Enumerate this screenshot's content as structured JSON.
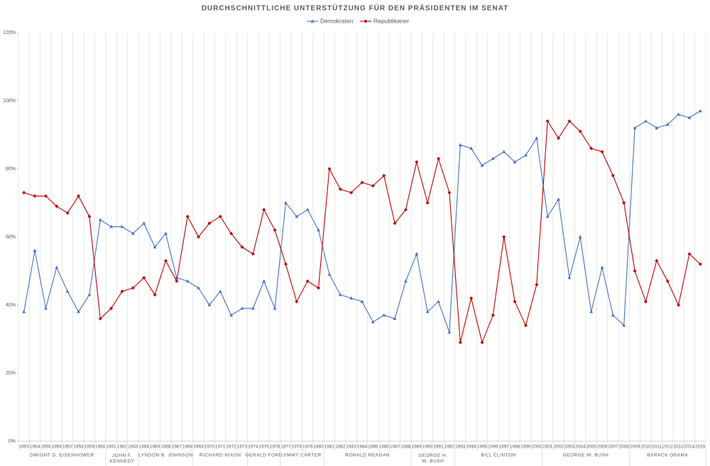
{
  "chart_data": {
    "type": "line",
    "title": "DURCHSCHNITTLICHE UNTERSTÜTZUNG FÜR DEN PRÄSIDENTEN IM SENAT",
    "categories": [
      "1953",
      "1954",
      "1955",
      "1956",
      "1957",
      "1958",
      "1959",
      "1960",
      "1961",
      "1962",
      "1963",
      "1964",
      "1965",
      "1966",
      "1967",
      "1968",
      "1969",
      "1970",
      "1971",
      "1972",
      "1973",
      "1974",
      "1975",
      "1976",
      "1977",
      "1978",
      "1979",
      "1980",
      "1981",
      "1982",
      "1983",
      "1984",
      "1985",
      "1986",
      "1987",
      "1988",
      "1989",
      "1990",
      "1991",
      "1992",
      "1993",
      "1994",
      "1995",
      "1996",
      "1997",
      "1998",
      "1999",
      "2000",
      "2001",
      "2002",
      "2003",
      "2004",
      "2005",
      "2006",
      "2007",
      "2008",
      "2009",
      "2010",
      "2011",
      "2012",
      "2013",
      "2014",
      "2015"
    ],
    "series": [
      {
        "name": "Demokraten",
        "color": "#4472c4",
        "marker": "triangle",
        "values": [
          38,
          56,
          39,
          51,
          44,
          38,
          43,
          65,
          63,
          63,
          61,
          64,
          57,
          61,
          48,
          47,
          45,
          40,
          44,
          37,
          39,
          39,
          47,
          39,
          70,
          66,
          68,
          62,
          49,
          43,
          42,
          41,
          35,
          37,
          36,
          47,
          55,
          38,
          41,
          32,
          87,
          86,
          81,
          83,
          85,
          82,
          84,
          89,
          66,
          71,
          48,
          60,
          38,
          51,
          37,
          34,
          92,
          94,
          92,
          93,
          96,
          95,
          97
        ]
      },
      {
        "name": "Republikaner",
        "color": "#c00000",
        "marker": "diamond",
        "values": [
          73,
          72,
          72,
          69,
          67,
          72,
          66,
          36,
          39,
          44,
          45,
          48,
          43,
          53,
          47,
          66,
          60,
          64,
          66,
          61,
          57,
          55,
          68,
          62,
          52,
          41,
          47,
          45,
          80,
          74,
          73,
          76,
          75,
          78,
          64,
          68,
          82,
          70,
          83,
          73,
          29,
          42,
          29,
          37,
          60,
          41,
          34,
          46,
          94,
          89,
          94,
          91,
          86,
          85,
          78,
          70,
          50,
          41,
          53,
          47,
          40,
          55,
          52
        ]
      }
    ],
    "groups": [
      {
        "label": "DWIGHT D. EISENHOWER",
        "first": "1953",
        "last": "1960"
      },
      {
        "label": "JOHN F. KENNEDY",
        "first": "1961",
        "last": "1963"
      },
      {
        "label": "LYNDON B. JOHNSON",
        "first": "1964",
        "last": "1968"
      },
      {
        "label": "RICHARD NIXON",
        "first": "1969",
        "last": "1973"
      },
      {
        "label": "GERALD FORD",
        "first": "1974",
        "last": "1976"
      },
      {
        "label": "JIMMY CARTER",
        "first": "1977",
        "last": "1980"
      },
      {
        "label": "RONALD REAGAN",
        "first": "1981",
        "last": "1988"
      },
      {
        "label": "GEORGE H. W. BUSH",
        "first": "1989",
        "last": "1992"
      },
      {
        "label": "BILL CLINTON",
        "first": "1993",
        "last": "2000"
      },
      {
        "label": "GEORGE W. BUSH",
        "first": "2001",
        "last": "2008"
      },
      {
        "label": "BARACK OBAMA",
        "first": "2009",
        "last": "2015"
      }
    ],
    "ylim": [
      0,
      120
    ],
    "yticks": [
      {
        "value": 0,
        "label": "0%"
      },
      {
        "value": 20,
        "label": "20%"
      },
      {
        "value": 40,
        "label": "40%"
      },
      {
        "value": 60,
        "label": "60%"
      },
      {
        "value": 80,
        "label": "80%"
      },
      {
        "value": 100,
        "label": "100%"
      },
      {
        "value": 120,
        "label": "120%"
      }
    ],
    "legend": "top"
  }
}
